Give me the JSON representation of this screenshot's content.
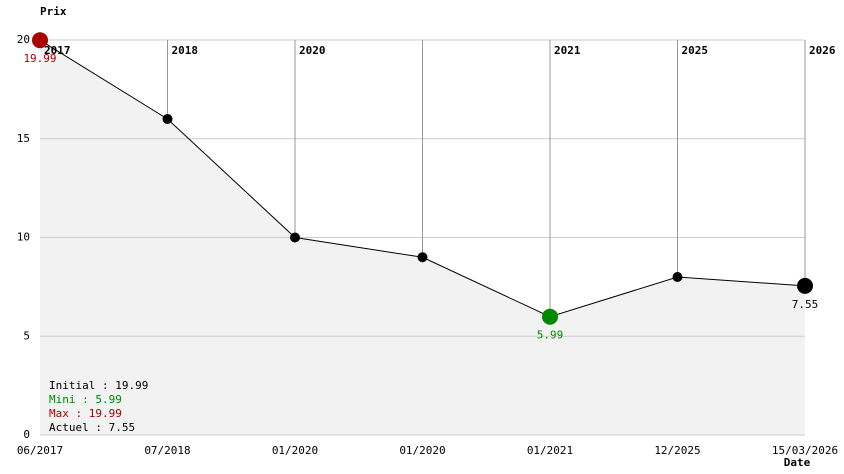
{
  "chart_data": {
    "type": "line",
    "y_title": "Prix",
    "x_title": "Date",
    "categories": [
      "06/2017",
      "07/2018",
      "01/2020",
      "01/2020",
      "01/2021",
      "12/2025",
      "15/03/2026"
    ],
    "year_labels": [
      "2017",
      "2018",
      "2020",
      null,
      "2021",
      "2025",
      "2026"
    ],
    "values": [
      19.99,
      16,
      10,
      9,
      5.99,
      8,
      7.55
    ],
    "color": "#000000",
    "fill": "#f2f2f2",
    "max_color": "#aa0000",
    "min_color": "#008800",
    "current_color": "#000000",
    "ylim": [
      0,
      20
    ],
    "yticks": [
      0,
      5,
      10,
      15,
      20
    ],
    "grid": true,
    "summary": [
      {
        "text": "Initial : 19.99",
        "color": "#000000"
      },
      {
        "text": "Mini : 5.99",
        "color": "#008800"
      },
      {
        "text": "Max : 19.99",
        "color": "#aa0000"
      },
      {
        "text": "Actuel : 7.55",
        "color": "#000000"
      }
    ]
  }
}
